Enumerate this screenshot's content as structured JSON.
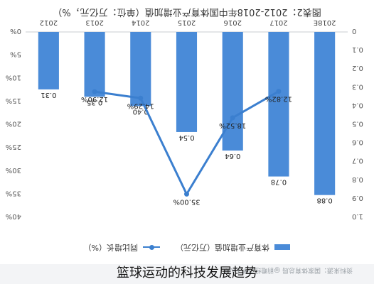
{
  "header": {
    "title": "图表2：2012-2018年中国体育产业增加值（单位：万亿元，%）"
  },
  "legend": {
    "bar_label": "体育产业增加值（万亿元）",
    "line_label": "同比增长（%）"
  },
  "source": {
    "text": "资料来源：国家体育总局  @前瞻经济学人APP"
  },
  "caption": {
    "text": "篮球运动的科技发展趋势"
  },
  "chart_data": {
    "type": "bar",
    "orientation": "rotated-180",
    "categories": [
      "2018E",
      "2017",
      "2016",
      "2015",
      "2014",
      "2013",
      "2012"
    ],
    "series": [
      {
        "name": "体育产业增加值（万亿元）",
        "type": "bar",
        "axis": "value",
        "values": [
          0.88,
          0.78,
          0.64,
          0.54,
          0.4,
          0.35,
          0.31
        ],
        "labels": [
          "0.88",
          "0.78",
          "0.64",
          "0.54",
          "0.40",
          "0.35",
          "0.31"
        ],
        "color": "#4a8bd8"
      },
      {
        "name": "同比增长（%）",
        "type": "line",
        "axis": "percent",
        "values": [
          null,
          12.82,
          18.52,
          35.0,
          14.29,
          12.9,
          null
        ],
        "labels": [
          null,
          "12.82%",
          "18.52%",
          "35.00%",
          "14.29%",
          "12.90%",
          null
        ],
        "color": "#3b7fcf"
      }
    ],
    "percent_axis": {
      "ticks": [
        0,
        5,
        10,
        15,
        20,
        25,
        30,
        35,
        40
      ],
      "tick_labels": [
        "0%",
        "5%",
        "10%",
        "15%",
        "20%",
        "25%",
        "30%",
        "35%",
        "40%"
      ],
      "range": [
        0,
        40
      ]
    },
    "value_axis": {
      "ticks": [
        0,
        0.1,
        0.2,
        0.3,
        0.4,
        0.5,
        0.6,
        0.7,
        0.8,
        0.9,
        1.0
      ],
      "tick_labels": [
        "0",
        "0.1",
        "0.2",
        "0.3",
        "0.4",
        "0.5",
        "0.6",
        "0.7",
        "0.8",
        "0.9",
        "1.0"
      ],
      "range": [
        0,
        1.0
      ]
    },
    "grid": false,
    "legend_position": "bottom"
  }
}
